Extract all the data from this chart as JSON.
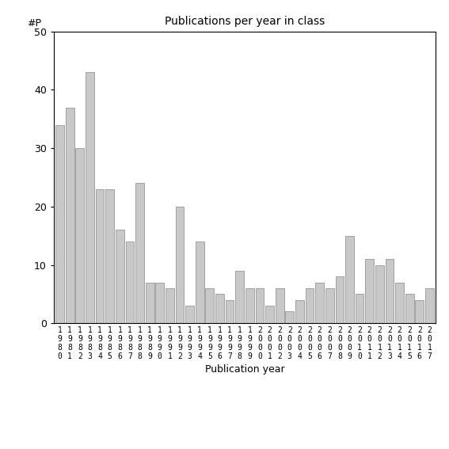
{
  "years": [
    "1980",
    "1981",
    "1982",
    "1983",
    "1984",
    "1985",
    "1986",
    "1987",
    "1988",
    "1989",
    "1990",
    "1991",
    "1992",
    "1993",
    "1994",
    "1995",
    "1996",
    "1997",
    "1998",
    "1999",
    "2000",
    "2001",
    "2002",
    "2003",
    "2004",
    "2005",
    "2006",
    "2007",
    "2008",
    "2009",
    "2010",
    "2011",
    "2012",
    "2013",
    "2014",
    "2015",
    "2016",
    "2017"
  ],
  "values": [
    34,
    37,
    30,
    43,
    23,
    23,
    16,
    14,
    24,
    7,
    7,
    6,
    20,
    3,
    14,
    6,
    5,
    4,
    9,
    6,
    6,
    3,
    6,
    2,
    4,
    6,
    7,
    6,
    8,
    15,
    5,
    11,
    10,
    11,
    7,
    5,
    4,
    6
  ],
  "title": "Publications per year in class",
  "xlabel": "Publication year",
  "ylabel": "#P",
  "ylim": [
    0,
    50
  ],
  "yticks": [
    0,
    10,
    20,
    30,
    40,
    50
  ],
  "bar_color": "#c8c8c8",
  "bar_edgecolor": "#888888",
  "background_color": "#ffffff",
  "figsize": [
    5.67,
    5.67
  ],
  "dpi": 100
}
